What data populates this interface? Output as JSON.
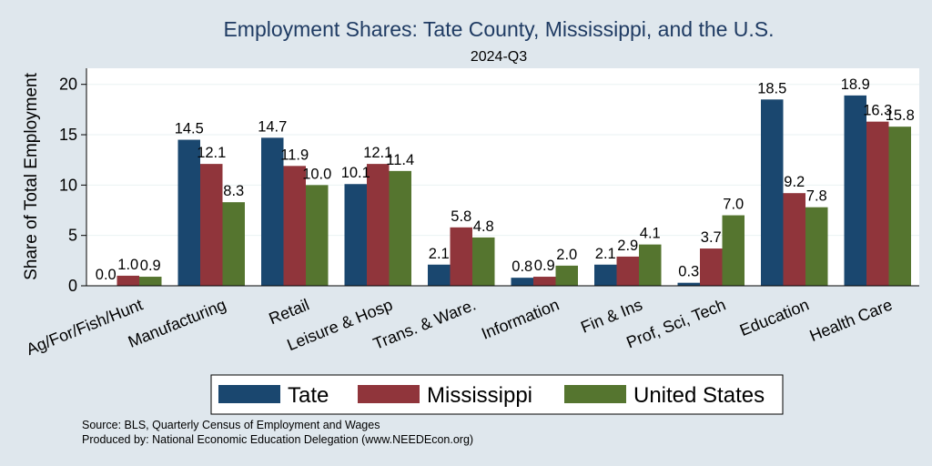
{
  "chart_data": {
    "type": "bar",
    "title": "Employment Shares: Tate County, Mississippi, and the U.S.",
    "subtitle": "2024-Q3",
    "ylabel": "Share of Total Employment",
    "ylim": [
      0,
      21.6
    ],
    "yticks": [
      0,
      5,
      10,
      15,
      20
    ],
    "grid": true,
    "legend_position": "bottom",
    "categories": [
      "Ag/For/Fish/Hunt",
      "Manufacturing",
      "Retail",
      "Leisure & Hosp",
      "Trans. & Ware.",
      "Information",
      "Fin & Ins",
      "Prof, Sci, Tech",
      "Education",
      "Health Care"
    ],
    "series": [
      {
        "name": "Tate",
        "color": "#1a476f",
        "values": [
          0.0,
          14.5,
          14.7,
          10.1,
          2.1,
          0.8,
          2.1,
          0.3,
          18.5,
          18.9
        ],
        "labels": [
          "0.0",
          "14.5",
          "14.7",
          "10.1",
          "2.1",
          "0.8",
          "2.1",
          "0.3",
          "18.5",
          "18.9"
        ]
      },
      {
        "name": "Mississippi",
        "color": "#90353b",
        "values": [
          1.0,
          12.1,
          11.9,
          12.1,
          5.8,
          0.9,
          2.9,
          3.7,
          9.2,
          16.3
        ],
        "labels": [
          "1.0",
          "12.1",
          "11.9",
          "12.1",
          "5.8",
          "0.9",
          "2.9",
          "3.7",
          "9.2",
          "16.3"
        ]
      },
      {
        "name": "United States",
        "color": "#55752f",
        "values": [
          0.9,
          8.3,
          10.0,
          11.4,
          4.8,
          2.0,
          4.1,
          7.0,
          7.8,
          15.8
        ],
        "labels": [
          "0.9",
          "8.3",
          "10.0",
          "11.4",
          "4.8",
          "2.0",
          "4.1",
          "7.0",
          "7.8",
          "15.8"
        ]
      }
    ]
  },
  "footer": {
    "source": "Source: BLS, Quarterly Census of Employment and Wages",
    "produced_by": "Produced by: National Economic Education Delegation (www.NEEDEcon.org)"
  }
}
